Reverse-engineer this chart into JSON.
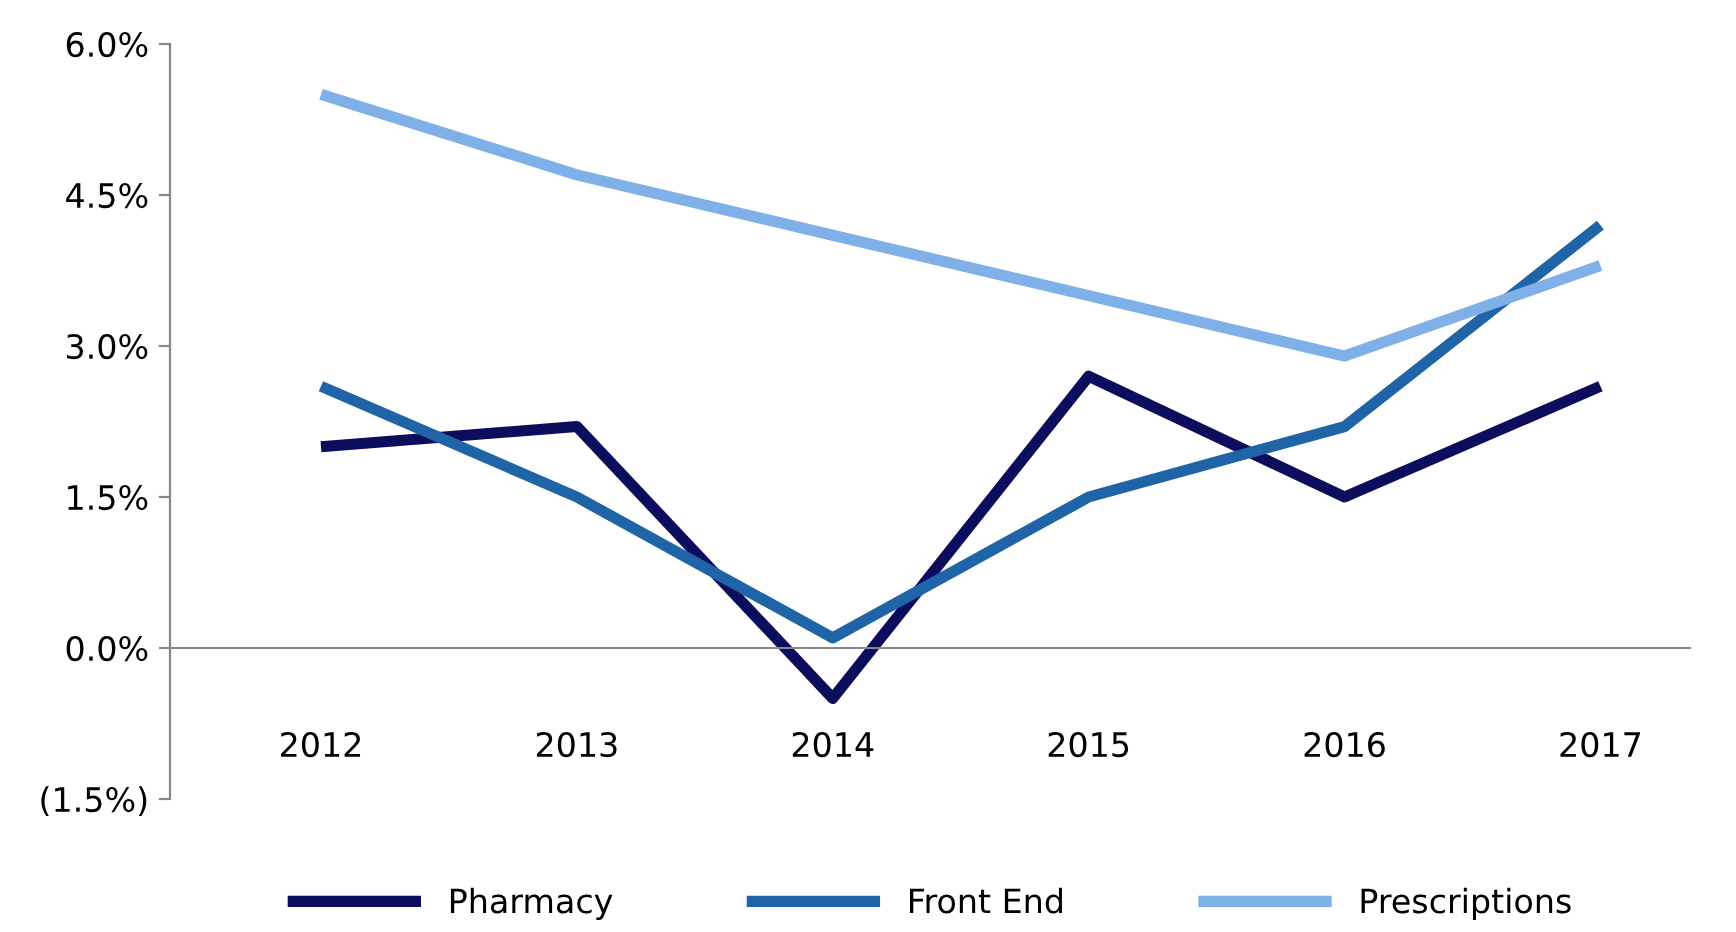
{
  "chart_data": {
    "type": "line",
    "categories": [
      "2012",
      "2013",
      "2014",
      "2015",
      "2016",
      "2017"
    ],
    "series": [
      {
        "name": "Pharmacy",
        "color": "#0d0d5e",
        "values": [
          2.0,
          2.2,
          -0.5,
          2.7,
          1.5,
          2.6
        ]
      },
      {
        "name": "Front End",
        "color": "#1f64a6",
        "values": [
          2.6,
          1.5,
          0.1,
          1.5,
          2.2,
          4.2
        ]
      },
      {
        "name": "Prescriptions",
        "color": "#7fb0e8",
        "values": [
          5.5,
          4.7,
          4.1,
          3.5,
          2.9,
          3.8
        ]
      }
    ],
    "ylim": [
      -1.5,
      6.0
    ],
    "yticks": [
      {
        "value": 6.0,
        "label": "6.0%"
      },
      {
        "value": 4.5,
        "label": "4.5%"
      },
      {
        "value": 3.0,
        "label": "3.0%"
      },
      {
        "value": 1.5,
        "label": "1.5%"
      },
      {
        "value": 0.0,
        "label": "0.0%"
      },
      {
        "value": -1.5,
        "label": "(1.5%)"
      }
    ],
    "grid": false,
    "legend": "bottom",
    "marker": "none",
    "line_style": "solid"
  }
}
